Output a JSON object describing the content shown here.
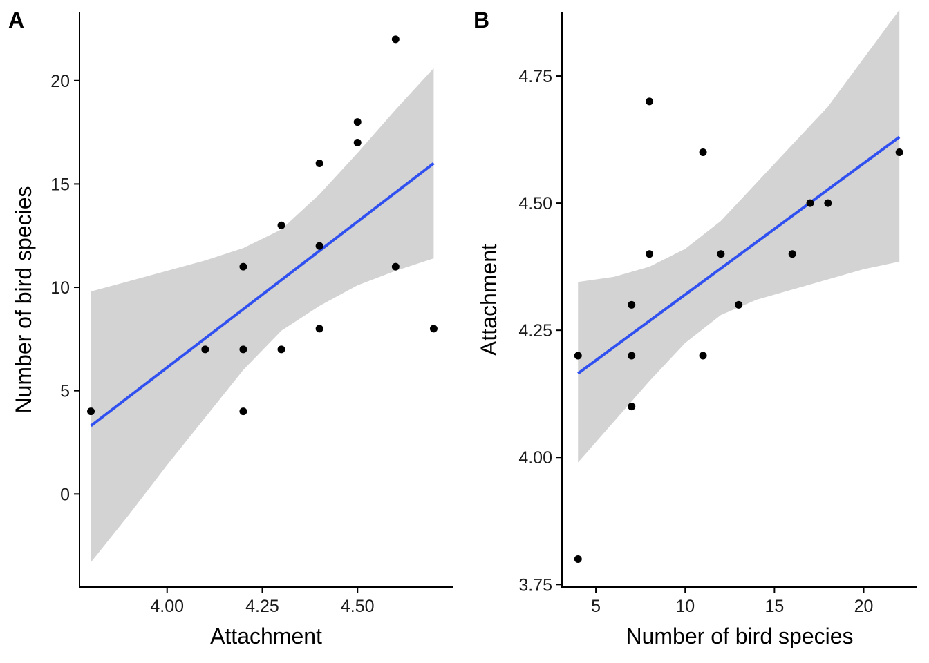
{
  "figure": {
    "panel_a_tag": "A",
    "panel_b_tag": "B"
  },
  "colors": {
    "points": "#000000",
    "fit_line": "#3050f0",
    "confidence_band": "#d3d3d3",
    "axis": "#000000"
  },
  "chart_data": [
    {
      "type": "scatter",
      "panel": "A",
      "xlabel": "Attachment",
      "ylabel": "Number of bird species",
      "xlim": [
        3.77,
        4.75
      ],
      "ylim": [
        -4.5,
        23.3
      ],
      "x_ticks": [
        4.0,
        4.25,
        4.5
      ],
      "x_tick_labels": [
        "4.00",
        "4.25",
        "4.50"
      ],
      "y_ticks": [
        0,
        5,
        10,
        15,
        20
      ],
      "y_tick_labels": [
        "0",
        "5",
        "10",
        "15",
        "20"
      ],
      "points": [
        {
          "x": 3.8,
          "y": 4
        },
        {
          "x": 4.1,
          "y": 7
        },
        {
          "x": 4.2,
          "y": 4
        },
        {
          "x": 4.2,
          "y": 7
        },
        {
          "x": 4.2,
          "y": 11
        },
        {
          "x": 4.3,
          "y": 7
        },
        {
          "x": 4.3,
          "y": 13
        },
        {
          "x": 4.4,
          "y": 8
        },
        {
          "x": 4.4,
          "y": 12
        },
        {
          "x": 4.4,
          "y": 16
        },
        {
          "x": 4.5,
          "y": 17
        },
        {
          "x": 4.5,
          "y": 18
        },
        {
          "x": 4.6,
          "y": 11
        },
        {
          "x": 4.6,
          "y": 22
        },
        {
          "x": 4.7,
          "y": 8
        }
      ],
      "fit_line": {
        "x": [
          3.8,
          4.7
        ],
        "y": [
          3.3,
          16.0
        ]
      },
      "confidence_band": {
        "x": [
          3.8,
          3.9,
          4.0,
          4.1,
          4.2,
          4.3,
          4.4,
          4.5,
          4.6,
          4.7
        ],
        "upper": [
          9.8,
          10.3,
          10.8,
          11.3,
          11.9,
          12.8,
          14.5,
          16.5,
          18.6,
          20.6
        ],
        "lower": [
          -3.3,
          -1.0,
          1.4,
          3.7,
          6.0,
          7.9,
          9.1,
          10.1,
          10.8,
          11.4
        ]
      }
    },
    {
      "type": "scatter",
      "panel": "B",
      "xlabel": "Number of bird species",
      "ylabel": "Attachment",
      "xlim": [
        3.1,
        23.0
      ],
      "ylim": [
        3.745,
        4.875
      ],
      "x_ticks": [
        5,
        10,
        15,
        20
      ],
      "x_tick_labels": [
        "5",
        "10",
        "15",
        "20"
      ],
      "y_ticks": [
        3.75,
        4.0,
        4.25,
        4.5,
        4.75
      ],
      "y_tick_labels": [
        "3.75",
        "4.00",
        "4.25",
        "4.50",
        "4.75"
      ],
      "points": [
        {
          "x": 4,
          "y": 3.8
        },
        {
          "x": 4,
          "y": 4.2
        },
        {
          "x": 7,
          "y": 4.1
        },
        {
          "x": 7,
          "y": 4.2
        },
        {
          "x": 7,
          "y": 4.3
        },
        {
          "x": 8,
          "y": 4.4
        },
        {
          "x": 8,
          "y": 4.7
        },
        {
          "x": 11,
          "y": 4.2
        },
        {
          "x": 11,
          "y": 4.6
        },
        {
          "x": 12,
          "y": 4.4
        },
        {
          "x": 13,
          "y": 4.3
        },
        {
          "x": 16,
          "y": 4.4
        },
        {
          "x": 17,
          "y": 4.5
        },
        {
          "x": 18,
          "y": 4.5
        },
        {
          "x": 22,
          "y": 4.6
        }
      ],
      "fit_line": {
        "x": [
          4,
          22
        ],
        "y": [
          4.165,
          4.63
        ]
      },
      "confidence_band": {
        "x": [
          4,
          6,
          8,
          10,
          12,
          14,
          16,
          18,
          20,
          22
        ],
        "upper": [
          4.345,
          4.355,
          4.375,
          4.41,
          4.465,
          4.54,
          4.615,
          4.69,
          4.785,
          4.88
        ],
        "lower": [
          3.99,
          4.07,
          4.15,
          4.225,
          4.28,
          4.31,
          4.33,
          4.35,
          4.37,
          4.385
        ]
      }
    }
  ]
}
